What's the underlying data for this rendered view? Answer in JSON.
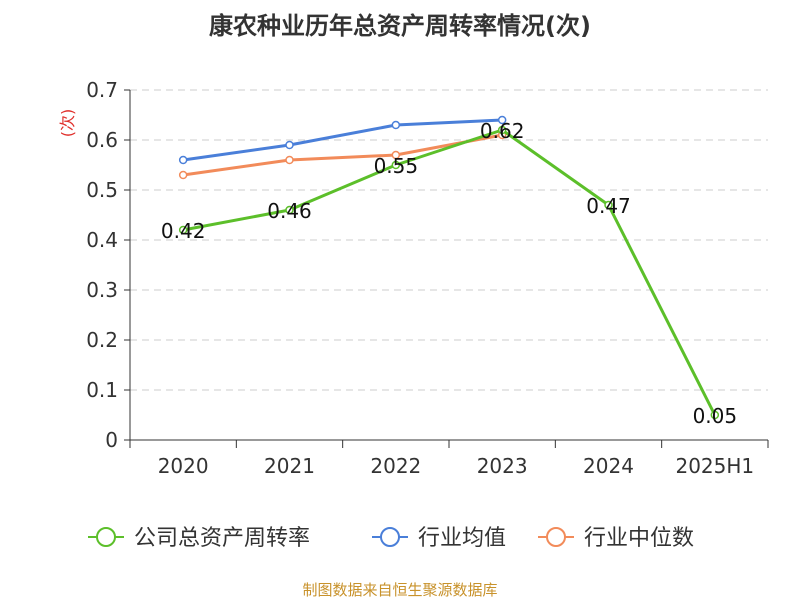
{
  "chart_data": {
    "type": "line",
    "title": "康农种业历年总资产周转率情况(次)",
    "ylabel": "(次)",
    "xlabel": "",
    "categories": [
      "2020",
      "2021",
      "2022",
      "2023",
      "2024",
      "2025H1"
    ],
    "ylim": [
      0,
      0.7
    ],
    "yticks": [
      "0",
      "0.1",
      "0.2",
      "0.3",
      "0.4",
      "0.5",
      "0.6",
      "0.7"
    ],
    "grid": "dashed-horizontal",
    "legend_position": "bottom",
    "series": [
      {
        "name": "公司总资产周转率",
        "color": "#5cbf2a",
        "values": [
          0.42,
          0.46,
          0.55,
          0.62,
          0.47,
          0.05
        ],
        "data_labels": [
          "0.42",
          "0.46",
          "0.55",
          "0.62",
          "0.47",
          "0.05"
        ]
      },
      {
        "name": "行业均值",
        "color": "#4a7fd9",
        "values": [
          0.56,
          0.59,
          0.63,
          0.64,
          null,
          null
        ]
      },
      {
        "name": "行业中位数",
        "color": "#f28b5a",
        "values": [
          0.53,
          0.56,
          0.57,
          0.61,
          null,
          null
        ]
      }
    ]
  },
  "footer": {
    "source": "制图数据来自恒生聚源数据库"
  }
}
